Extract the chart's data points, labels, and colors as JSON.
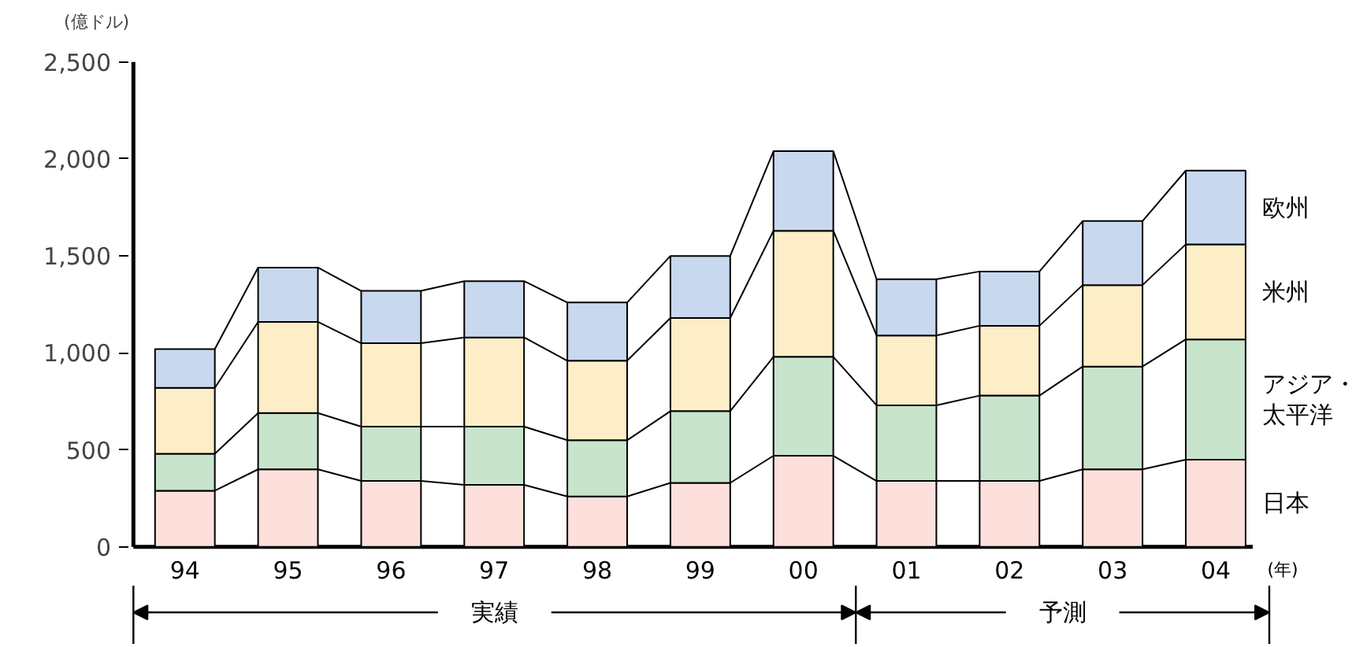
{
  "chart_data": {
    "type": "bar",
    "stacked": true,
    "title": "(億ドル)",
    "xlabel": "(年)",
    "categories": [
      "94",
      "95",
      "96",
      "97",
      "98",
      "99",
      "00",
      "01",
      "02",
      "03",
      "04"
    ],
    "series": [
      {
        "name": "日本",
        "color": "#fde0dc",
        "values": [
          290,
          400,
          340,
          320,
          260,
          330,
          470,
          340,
          340,
          400,
          450
        ]
      },
      {
        "name": "アジア・太平洋",
        "color": "#c8e4cc",
        "values": [
          190,
          290,
          280,
          300,
          290,
          370,
          510,
          390,
          440,
          530,
          620
        ]
      },
      {
        "name": "米州",
        "color": "#fdeec8",
        "values": [
          340,
          470,
          430,
          460,
          410,
          480,
          650,
          360,
          360,
          420,
          490
        ]
      },
      {
        "name": "欧州",
        "color": "#c8d8ef",
        "values": [
          200,
          280,
          270,
          290,
          300,
          320,
          410,
          290,
          280,
          330,
          380
        ]
      }
    ],
    "ylim": [
      0,
      2500
    ],
    "yticks": [
      0,
      500,
      {
        "value": 1000,
        "label": "1,000"
      },
      {
        "value": 1500,
        "label": "1,500"
      },
      {
        "value": 2000,
        "label": "2,000"
      },
      {
        "value": 2500,
        "label": "2,500"
      }
    ],
    "grid": false,
    "annotations": [
      "実績",
      "予測"
    ]
  }
}
